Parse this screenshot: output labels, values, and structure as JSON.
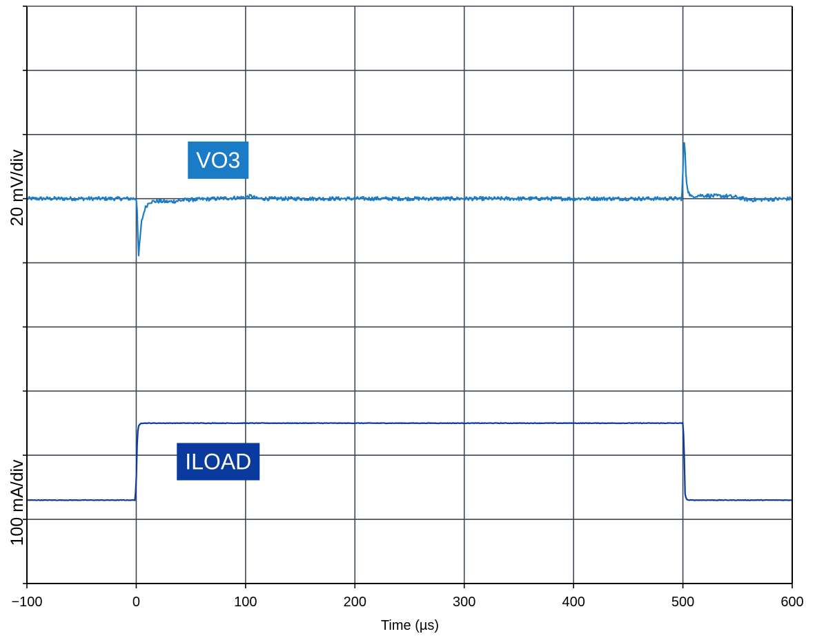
{
  "chart_data": {
    "type": "line",
    "title": "",
    "xlabel": "Time (µs)",
    "xlim": [
      -100,
      600
    ],
    "x_ticks": [
      -100,
      0,
      100,
      200,
      300,
      400,
      500,
      600
    ],
    "x_tick_labels": [
      "−100",
      "0",
      "100",
      "200",
      "300",
      "400",
      "500",
      "600"
    ],
    "y_divisions": 9,
    "grid": true,
    "ylabels": [
      {
        "text": "20 mV/div",
        "channel": "VO3"
      },
      {
        "text": "100 mA/div",
        "channel": "ILOAD"
      }
    ],
    "series": [
      {
        "name": "VO3",
        "color": "#1a7cc6",
        "unit_per_div": "20 mV/div",
        "baseline_div": 6,
        "x": [
          -100,
          -1,
          0,
          1,
          2,
          3,
          5,
          8,
          12,
          20,
          30,
          45,
          60,
          100,
          105,
          110,
          499,
          500,
          501,
          502,
          503,
          505,
          508,
          512,
          520,
          530,
          540,
          550,
          560,
          600
        ],
        "y_div": [
          0,
          0,
          0,
          -0.2,
          -0.97,
          -0.7,
          -0.35,
          -0.15,
          -0.05,
          -0.04,
          -0.05,
          -0.02,
          -0.01,
          0.02,
          0.04,
          0,
          0,
          0.4,
          0.95,
          0.7,
          0.3,
          0.1,
          0.02,
          0.05,
          0.05,
          0.04,
          0.04,
          0.02,
          -0.02,
          0
        ]
      },
      {
        "name": "ILOAD",
        "color": "#0a3a9e",
        "unit_per_div": "100 mA/div",
        "baseline_div": 1.3,
        "x": [
          -100,
          -1,
          0,
          1,
          2,
          4,
          8,
          500,
          501,
          502,
          503,
          505,
          510,
          600
        ],
        "y_div": [
          0,
          0,
          0.3,
          1.0,
          1.15,
          1.2,
          1.2,
          1.2,
          0.9,
          0.1,
          0.02,
          0,
          0,
          0
        ]
      }
    ],
    "annotations": [
      {
        "text": "VO3",
        "series": "VO3",
        "bg": "#1a7cc6",
        "at_x": 75,
        "at_div": 6.6
      },
      {
        "text": "ILOAD",
        "series": "ILOAD",
        "bg": "#0a3a9e",
        "at_x": 75,
        "at_div": 1.9
      }
    ]
  },
  "colors": {
    "grid": "#3a4654",
    "axis": "#000000"
  }
}
